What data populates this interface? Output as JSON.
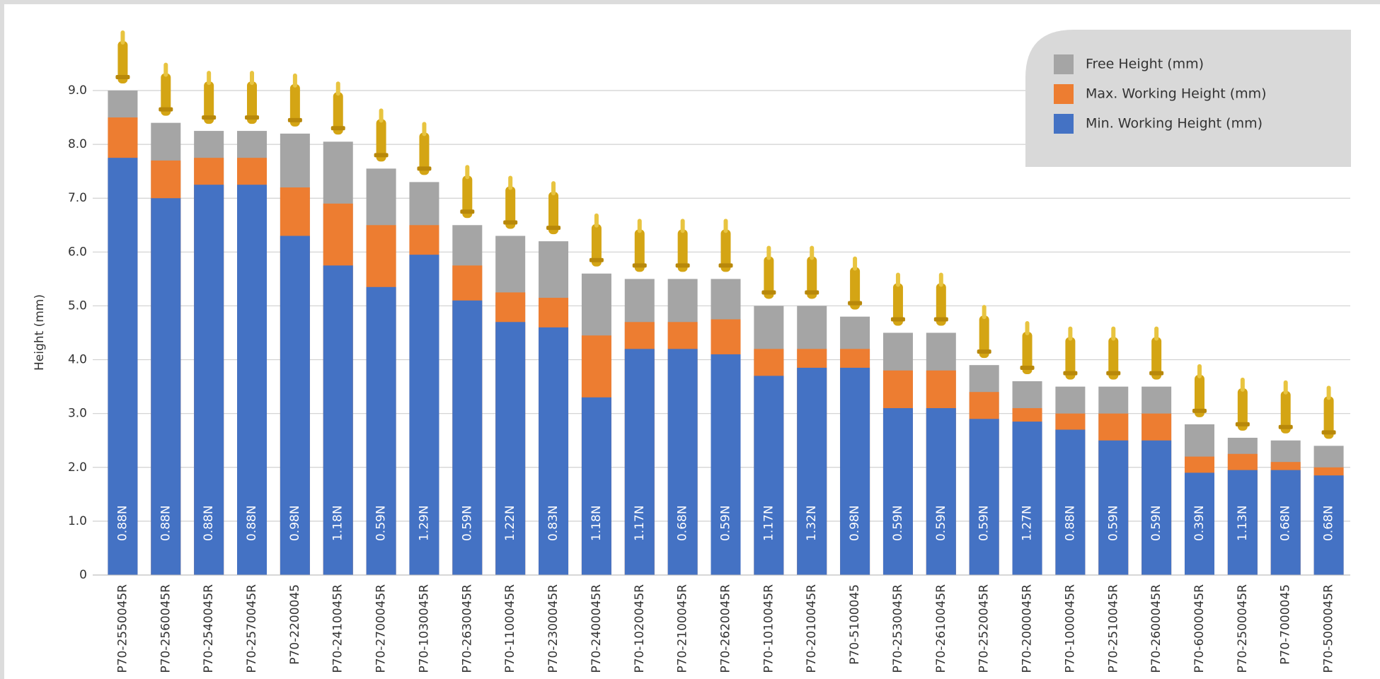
{
  "chart_data": {
    "type": "bar",
    "y_label": "Height (mm)",
    "categories": [
      "P70-2550045R",
      "P70-2560045R",
      "P70-2540045R",
      "P70-2570045R",
      "P70-2200045",
      "P70-2410045R",
      "P70-2700045R",
      "P70-1030045R",
      "P70-2630045R",
      "P70-1100045R",
      "P70-2300045R",
      "P70-2400045R",
      "P70-1020045R",
      "P70-2100045R",
      "P70-2620045R",
      "P70-1010045R",
      "P70-2010045R",
      "P70-5100045",
      "P70-2530045R",
      "P70-2610045R",
      "P70-2520045R",
      "P70-2000045R",
      "P70-1000045R",
      "P70-2510045R",
      "P70-2600045R",
      "P70-6000045R",
      "P70-2500045R",
      "P70-7000045",
      "P70-5000045R"
    ],
    "series": [
      {
        "name": "Free Height (mm)",
        "color": "#a5a5a5",
        "values": [
          9.0,
          8.4,
          8.25,
          8.25,
          8.2,
          8.05,
          7.55,
          7.3,
          6.5,
          6.3,
          6.2,
          5.6,
          5.5,
          5.5,
          5.5,
          5.0,
          5.0,
          4.8,
          4.5,
          4.5,
          3.9,
          3.6,
          3.5,
          3.5,
          3.5,
          2.8,
          2.55,
          2.5,
          2.4
        ]
      },
      {
        "name": "Max. Working Height (mm)",
        "color": "#ed7d31",
        "values": [
          8.5,
          7.7,
          7.75,
          7.75,
          7.2,
          6.9,
          6.5,
          6.5,
          5.75,
          5.25,
          5.15,
          4.45,
          4.7,
          4.7,
          4.75,
          4.2,
          4.2,
          4.2,
          3.8,
          3.8,
          3.4,
          3.1,
          3.0,
          3.0,
          3.0,
          2.2,
          2.25,
          2.1,
          2.0
        ]
      },
      {
        "name": "Min. Working Height (mm)",
        "color": "#4472c4",
        "values": [
          7.75,
          7.0,
          7.25,
          7.25,
          6.3,
          5.75,
          5.35,
          5.95,
          5.1,
          4.7,
          4.6,
          3.3,
          4.2,
          4.2,
          4.1,
          3.7,
          3.85,
          3.85,
          3.1,
          3.1,
          2.9,
          2.85,
          2.7,
          2.5,
          2.5,
          1.9,
          1.95,
          1.95,
          1.85
        ]
      }
    ],
    "force_labels": [
      "0.88N",
      "0.88N",
      "0.88N",
      "0.88N",
      "0.98N",
      "1.18N",
      "0.59N",
      "1.29N",
      "0.59N",
      "1.22N",
      "0.83N",
      "1.18N",
      "1.17N",
      "0.68N",
      "0.59N",
      "1.17N",
      "1.32N",
      "0.98N",
      "0.59N",
      "0.59N",
      "0.59N",
      "1.27N",
      "0.88N",
      "0.59N",
      "0.59N",
      "0.39N",
      "1.13N",
      "0.68N",
      "0.68N"
    ],
    "ylim": [
      0,
      9
    ],
    "yticks": [
      0,
      {
        "value": 1,
        "label": "1.0"
      },
      {
        "value": 2,
        "label": "2.0"
      },
      {
        "value": 3,
        "label": "3.0"
      },
      {
        "value": 4,
        "label": "4.0"
      },
      {
        "value": 5,
        "label": "5.0"
      },
      {
        "value": 6,
        "label": "6.0"
      },
      {
        "value": 7,
        "label": "7.0"
      },
      {
        "value": 8,
        "label": "8.0"
      },
      {
        "value": 9,
        "label": "9.0"
      }
    ],
    "grid": true
  }
}
